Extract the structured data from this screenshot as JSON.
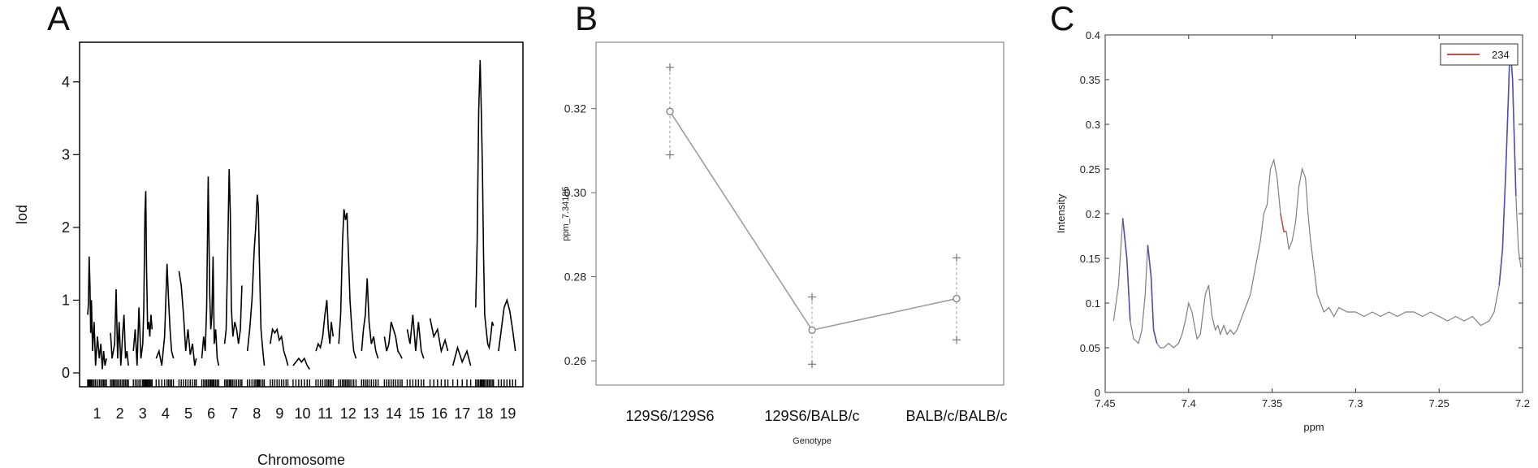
{
  "figure": {
    "panels": [
      "A",
      "B",
      "C"
    ]
  },
  "chart_data": [
    {
      "panel": "A",
      "type": "line",
      "xlabel": "Chromosome",
      "ylabel": "lod",
      "ylim": [
        0,
        4.5
      ],
      "yticks": [
        0,
        1,
        2,
        3,
        4
      ],
      "categories": [
        "1",
        "2",
        "3",
        "4",
        "5",
        "6",
        "7",
        "8",
        "9",
        "10",
        "11",
        "12",
        "13",
        "14",
        "15",
        "16",
        "17",
        "18",
        "19"
      ],
      "series_color": "#000000",
      "chromosomes": [
        {
          "chr": "1",
          "x": [
            0,
            4,
            8,
            12,
            16,
            20,
            26,
            34,
            42,
            52,
            62,
            70,
            78,
            85,
            92,
            100
          ],
          "lod": [
            0.8,
            0.95,
            1.6,
            1.2,
            0.55,
            1.0,
            0.3,
            0.7,
            0.1,
            0.5,
            0.2,
            0.4,
            0.05,
            0.3,
            0.1,
            0.2
          ]
        },
        {
          "chr": "2",
          "x": [
            0,
            8,
            15,
            22,
            30,
            38,
            46,
            55,
            64,
            72,
            80,
            88,
            95
          ],
          "lod": [
            0.55,
            0.2,
            0.3,
            0.4,
            1.15,
            0.2,
            0.7,
            0.1,
            0.5,
            0.8,
            0.2,
            0.3,
            0.1
          ]
        },
        {
          "chr": "3",
          "x": [
            0,
            10,
            20,
            30,
            40,
            50,
            56,
            62,
            66,
            70,
            76,
            82,
            88,
            94,
            100
          ],
          "lod": [
            0.3,
            0.6,
            0.1,
            0.9,
            0.2,
            0.4,
            0.9,
            2.2,
            2.5,
            1.5,
            0.6,
            0.7,
            0.5,
            0.8,
            0.6
          ]
        },
        {
          "chr": "4",
          "x": [
            0,
            15,
            30,
            45,
            58,
            66,
            74,
            82,
            92
          ],
          "lod": [
            0.2,
            0.3,
            0.1,
            0.5,
            1.5,
            1.0,
            0.6,
            0.3,
            0.2
          ]
        },
        {
          "chr": "5",
          "x": [
            0,
            12,
            24,
            36,
            48,
            60,
            72,
            84,
            92
          ],
          "lod": [
            1.4,
            1.2,
            0.8,
            0.3,
            0.6,
            0.25,
            0.4,
            0.1,
            0.2
          ]
        },
        {
          "chr": "6",
          "x": [
            0,
            10,
            18,
            26,
            34,
            42,
            48,
            54,
            60,
            66,
            74,
            82,
            90
          ],
          "lod": [
            0.2,
            0.5,
            0.3,
            0.9,
            2.7,
            1.1,
            0.6,
            0.8,
            1.6,
            0.4,
            0.6,
            0.2,
            0.1
          ]
        },
        {
          "chr": "7",
          "x": [
            0,
            8,
            16,
            24,
            30,
            36,
            44,
            54,
            64,
            74,
            84,
            92
          ],
          "lod": [
            0.4,
            0.6,
            1.6,
            2.8,
            2.2,
            0.9,
            0.5,
            0.7,
            0.6,
            0.4,
            0.6,
            1.2
          ]
        },
        {
          "chr": "8",
          "x": [
            0,
            12,
            24,
            36,
            44,
            52,
            58,
            64,
            72,
            82,
            90
          ],
          "lod": [
            0.3,
            0.6,
            1.0,
            1.7,
            2.0,
            2.45,
            2.3,
            1.5,
            0.6,
            0.3,
            0.1
          ]
        },
        {
          "chr": "9",
          "x": [
            0,
            12,
            24,
            36,
            48,
            60,
            72,
            84,
            94
          ],
          "lod": [
            0.4,
            0.6,
            0.55,
            0.6,
            0.45,
            0.5,
            0.3,
            0.2,
            0.1
          ]
        },
        {
          "chr": "10",
          "x": [
            0,
            15,
            30,
            45,
            60,
            75,
            88
          ],
          "lod": [
            0.1,
            0.15,
            0.2,
            0.15,
            0.2,
            0.1,
            0.05
          ]
        },
        {
          "chr": "11",
          "x": [
            0,
            12,
            24,
            36,
            48,
            58,
            66,
            74,
            82,
            92
          ],
          "lod": [
            0.3,
            0.4,
            0.35,
            0.5,
            0.8,
            1.0,
            0.6,
            0.4,
            0.7,
            0.5
          ]
        },
        {
          "chr": "12",
          "x": [
            0,
            10,
            20,
            28,
            36,
            44,
            52,
            60,
            70,
            80,
            92
          ],
          "lod": [
            0.4,
            0.8,
            1.8,
            2.25,
            2.1,
            2.2,
            1.6,
            1.0,
            0.6,
            0.3,
            0.2
          ]
        },
        {
          "chr": "13",
          "x": [
            0,
            10,
            20,
            30,
            40,
            52,
            64,
            76,
            88
          ],
          "lod": [
            0.3,
            0.6,
            0.8,
            1.3,
            0.7,
            0.4,
            0.5,
            0.3,
            0.2
          ]
        },
        {
          "chr": "14",
          "x": [
            0,
            12,
            24,
            36,
            48,
            60,
            72,
            84,
            94
          ],
          "lod": [
            0.5,
            0.3,
            0.4,
            0.7,
            0.6,
            0.5,
            0.3,
            0.25,
            0.2
          ]
        },
        {
          "chr": "15",
          "x": [
            0,
            15,
            30,
            45,
            60,
            75,
            88
          ],
          "lod": [
            0.6,
            0.4,
            0.8,
            0.3,
            0.7,
            0.3,
            0.2
          ]
        },
        {
          "chr": "16",
          "x": [
            0,
            20,
            40,
            60,
            80,
            95
          ],
          "lod": [
            0.75,
            0.5,
            0.6,
            0.3,
            0.45,
            0.3
          ]
        },
        {
          "chr": "17",
          "x": [
            0,
            25,
            50,
            75,
            95
          ],
          "lod": [
            0.1,
            0.35,
            0.15,
            0.3,
            0.1
          ]
        },
        {
          "chr": "18",
          "x": [
            0,
            8,
            16,
            24,
            30,
            36,
            42,
            48,
            56,
            64,
            72,
            80,
            88,
            95
          ],
          "lod": [
            0.9,
            1.8,
            3.6,
            4.3,
            3.6,
            2.8,
            1.6,
            0.8,
            0.6,
            0.4,
            0.35,
            0.5,
            0.7,
            0.65
          ]
        },
        {
          "chr": "19",
          "x": [
            0,
            15,
            30,
            45,
            60,
            75,
            90
          ],
          "lod": [
            0.3,
            0.6,
            0.9,
            1.0,
            0.85,
            0.6,
            0.3
          ]
        }
      ]
    },
    {
      "panel": "B",
      "type": "line",
      "xlabel": "Genotype",
      "ylabel": "ppm_7.34185",
      "ylim": [
        0.255,
        0.335
      ],
      "yticks": [
        "0.26",
        "0.28",
        "0.30",
        "0.32"
      ],
      "categories": [
        "129S6/129S6",
        "129S6/BALB/c",
        "BALB/c/BALB/c"
      ],
      "mean": [
        0.3193,
        0.2673,
        0.2748
      ],
      "upper": [
        0.3298,
        0.2752,
        0.2845
      ],
      "lower": [
        0.309,
        0.2592,
        0.265
      ],
      "line_color": "#999999"
    },
    {
      "panel": "C",
      "type": "line",
      "xlabel": "ppm",
      "ylabel": "Intensity",
      "xlim": [
        7.45,
        7.2
      ],
      "ylim": [
        0,
        0.4
      ],
      "xticks": [
        "7.45",
        "7.4",
        "7.35",
        "7.3",
        "7.25",
        "7.2"
      ],
      "yticks": [
        "0",
        "0.05",
        "0.1",
        "0.15",
        "0.2",
        "0.25",
        "0.3",
        "0.35",
        "0.4"
      ],
      "legend": [
        "234"
      ],
      "legend_position": "top-right",
      "colors": {
        "spectrum": "#7f7f7f",
        "highlight": "#c0504d",
        "blue": "#4f4fb0"
      },
      "ppm": [
        7.445,
        7.442,
        7.4395,
        7.437,
        7.435,
        7.433,
        7.43,
        7.428,
        7.426,
        7.4245,
        7.4225,
        7.421,
        7.419,
        7.417,
        7.415,
        7.412,
        7.409,
        7.406,
        7.404,
        7.402,
        7.4,
        7.398,
        7.396,
        7.395,
        7.393,
        7.392,
        7.39,
        7.388,
        7.386,
        7.384,
        7.3825,
        7.381,
        7.379,
        7.377,
        7.375,
        7.373,
        7.371,
        7.369,
        7.367,
        7.365,
        7.363,
        7.36,
        7.357,
        7.355,
        7.353,
        7.351,
        7.349,
        7.347,
        7.345,
        7.343,
        7.3415,
        7.34,
        7.338,
        7.336,
        7.334,
        7.332,
        7.33,
        7.3285,
        7.327,
        7.325,
        7.323,
        7.321,
        7.319,
        7.316,
        7.313,
        7.31,
        7.305,
        7.3,
        7.295,
        7.29,
        7.285,
        7.28,
        7.275,
        7.27,
        7.265,
        7.26,
        7.255,
        7.25,
        7.245,
        7.24,
        7.235,
        7.23,
        7.225,
        7.22,
        7.217,
        7.214,
        7.212,
        7.21,
        7.2085,
        7.2075,
        7.206,
        7.204,
        7.2025,
        7.201
      ],
      "intensity": [
        0.08,
        0.12,
        0.195,
        0.15,
        0.08,
        0.06,
        0.055,
        0.07,
        0.11,
        0.165,
        0.13,
        0.07,
        0.055,
        0.05,
        0.05,
        0.055,
        0.05,
        0.055,
        0.065,
        0.08,
        0.1,
        0.09,
        0.07,
        0.06,
        0.065,
        0.08,
        0.11,
        0.12,
        0.085,
        0.07,
        0.075,
        0.065,
        0.075,
        0.065,
        0.07,
        0.065,
        0.07,
        0.08,
        0.09,
        0.1,
        0.11,
        0.14,
        0.17,
        0.2,
        0.21,
        0.25,
        0.26,
        0.24,
        0.2,
        0.18,
        0.18,
        0.16,
        0.17,
        0.19,
        0.23,
        0.25,
        0.24,
        0.2,
        0.17,
        0.14,
        0.11,
        0.1,
        0.09,
        0.095,
        0.085,
        0.095,
        0.09,
        0.09,
        0.085,
        0.09,
        0.085,
        0.09,
        0.085,
        0.09,
        0.09,
        0.085,
        0.09,
        0.085,
        0.08,
        0.085,
        0.08,
        0.085,
        0.075,
        0.08,
        0.09,
        0.12,
        0.16,
        0.25,
        0.33,
        0.39,
        0.35,
        0.22,
        0.16,
        0.14
      ],
      "highlight_range": [
        7.345,
        7.3415
      ],
      "blue_ranges": [
        [
          7.44,
          7.435
        ],
        [
          7.4245,
          7.419
        ],
        [
          7.268,
          7.262
        ],
        [
          7.214,
          7.204
        ]
      ]
    }
  ]
}
